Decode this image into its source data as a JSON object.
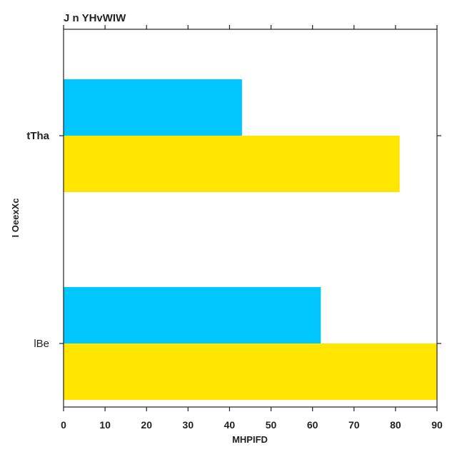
{
  "chart_data": {
    "type": "bar",
    "orientation": "horizontal",
    "title": "J  n YHvWIW",
    "xlabel": "MHPIFD",
    "ylabel": "I OeexXc",
    "categories": [
      "tTha",
      "lBe"
    ],
    "category_label_weight": [
      "bold",
      "normal"
    ],
    "series": [
      {
        "values": [
          43,
          62
        ],
        "color": "#00c8ff"
      },
      {
        "values": [
          81,
          90
        ],
        "color": "#ffe600"
      }
    ],
    "xlim": [
      0,
      90
    ],
    "xticks": [
      0,
      10,
      20,
      30,
      40,
      50,
      60,
      70,
      80,
      90
    ],
    "grid": false
  }
}
